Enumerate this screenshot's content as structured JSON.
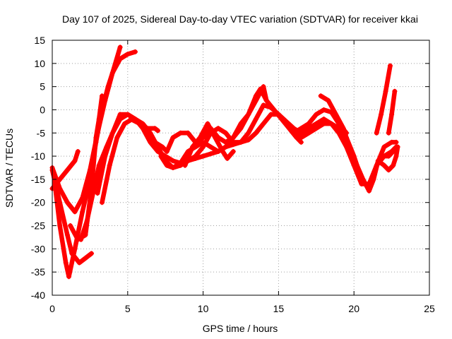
{
  "chart_data": {
    "type": "line",
    "title": "Day 107 of 2025, Sidereal Day-to-day VTEC variation (SDTVAR) for receiver kkai",
    "xlabel": "GPS time / hours",
    "ylabel": "SDTVAR / TECUs",
    "xlim": [
      0,
      25
    ],
    "ylim": [
      -40,
      15
    ],
    "xticks": [
      "0",
      "5",
      "10",
      "15",
      "20",
      "25"
    ],
    "yticks": [
      "15",
      "10",
      "5",
      "0",
      "-5",
      "-10",
      "-15",
      "-20",
      "-25",
      "-30",
      "-35",
      "-40"
    ],
    "grid": true,
    "series_color": "#ff0000",
    "marker": "plus",
    "series": [
      {
        "points": [
          [
            0,
            -12.5
          ],
          [
            0.5,
            -17
          ],
          [
            1.0,
            -20
          ],
          [
            1.5,
            -22
          ],
          [
            2.0,
            -19
          ],
          [
            2.5,
            -13
          ],
          [
            3.0,
            -5
          ],
          [
            3.5,
            2
          ],
          [
            4.0,
            8
          ],
          [
            4.5,
            13.5
          ]
        ]
      },
      {
        "points": [
          [
            0,
            -13
          ],
          [
            0.5,
            -20
          ],
          [
            1.0,
            -27
          ],
          [
            1.3,
            -31
          ],
          [
            1.8,
            -33
          ],
          [
            2.2,
            -32
          ],
          [
            2.6,
            -31
          ]
        ]
      },
      {
        "points": [
          [
            0.1,
            -14
          ],
          [
            0.5,
            -25
          ],
          [
            0.9,
            -33
          ],
          [
            1.1,
            -36
          ],
          [
            1.5,
            -30
          ],
          [
            2.0,
            -22
          ],
          [
            2.5,
            -15
          ],
          [
            2.9,
            -7
          ],
          [
            3.3,
            0
          ],
          [
            3.7,
            5
          ],
          [
            4.0,
            8
          ],
          [
            4.5,
            11
          ],
          [
            5.0,
            12
          ],
          [
            5.5,
            12.5
          ]
        ]
      },
      {
        "points": [
          [
            0,
            -17
          ],
          [
            0.5,
            -15
          ],
          [
            1.0,
            -13
          ],
          [
            1.5,
            -11
          ],
          [
            1.7,
            -9
          ]
        ]
      },
      {
        "points": [
          [
            1.2,
            -25
          ],
          [
            1.7,
            -28
          ],
          [
            2.2,
            -27
          ],
          [
            2.6,
            -17
          ],
          [
            2.9,
            -6
          ],
          [
            3.1,
            -2
          ],
          [
            3.3,
            3
          ]
        ]
      },
      {
        "points": [
          [
            1.9,
            -28
          ],
          [
            2.3,
            -24
          ],
          [
            2.7,
            -18
          ],
          [
            3.1,
            -12
          ],
          [
            3.6,
            -8
          ],
          [
            4.0,
            -5
          ],
          [
            4.5,
            -2
          ],
          [
            5.0,
            -1
          ],
          [
            5.5,
            -2
          ],
          [
            6.0,
            -3
          ],
          [
            6.5,
            -5
          ],
          [
            7.0,
            -8
          ],
          [
            7.5,
            -11
          ],
          [
            8.0,
            -12.5
          ],
          [
            8.5,
            -12
          ],
          [
            9.0,
            -11
          ],
          [
            9.5,
            -10.5
          ],
          [
            10.0,
            -10
          ],
          [
            10.5,
            -9.5
          ],
          [
            11.0,
            -9
          ],
          [
            11.5,
            -8
          ],
          [
            12.0,
            -7.5
          ],
          [
            12.5,
            -7
          ],
          [
            13.0,
            -6.5
          ],
          [
            13.5,
            -5
          ],
          [
            14.0,
            -3
          ],
          [
            14.5,
            -1
          ],
          [
            15.0,
            -1
          ],
          [
            15.5,
            -3
          ],
          [
            16.0,
            -5
          ],
          [
            16.5,
            -6
          ],
          [
            17.0,
            -5
          ],
          [
            17.5,
            -4
          ],
          [
            18.0,
            -3
          ],
          [
            18.5,
            -3
          ],
          [
            19.0,
            -4
          ],
          [
            19.5,
            -6
          ],
          [
            20.0,
            -10
          ],
          [
            20.5,
            -15
          ],
          [
            21.0,
            -17
          ],
          [
            21.5,
            -12
          ],
          [
            22.0,
            -8
          ],
          [
            22.5,
            -7
          ],
          [
            22.8,
            -7
          ]
        ]
      },
      {
        "points": [
          [
            3.0,
            -18
          ],
          [
            3.5,
            -10
          ],
          [
            4.0,
            -5
          ],
          [
            4.5,
            -1
          ],
          [
            5.0,
            -1
          ],
          [
            5.5,
            -2
          ],
          [
            6.0,
            -4
          ],
          [
            6.5,
            -7
          ],
          [
            7.0,
            -9
          ],
          [
            7.5,
            -10
          ],
          [
            8.0,
            -11
          ],
          [
            8.5,
            -11.5
          ],
          [
            9.0,
            -11
          ],
          [
            9.5,
            -10
          ],
          [
            10.0,
            -8
          ],
          [
            10.5,
            -5
          ],
          [
            11.0,
            -4
          ],
          [
            11.5,
            -5
          ],
          [
            12.0,
            -7
          ],
          [
            12.5,
            -7
          ],
          [
            13.0,
            -5
          ],
          [
            13.5,
            -2
          ],
          [
            14.0,
            1
          ],
          [
            14.5,
            0.5
          ],
          [
            15.0,
            -1
          ],
          [
            15.5,
            -2.5
          ],
          [
            16.0,
            -4
          ],
          [
            16.5,
            -5
          ],
          [
            17.0,
            -4
          ],
          [
            17.5,
            -3
          ],
          [
            18.0,
            -2
          ],
          [
            18.5,
            -3
          ],
          [
            19.0,
            -5
          ],
          [
            19.5,
            -8
          ],
          [
            20.0,
            -12
          ],
          [
            20.5,
            -16
          ],
          [
            21.0,
            -16
          ],
          [
            21.5,
            -12
          ],
          [
            22.0,
            -10
          ],
          [
            22.5,
            -9
          ],
          [
            22.8,
            -8
          ]
        ]
      },
      {
        "points": [
          [
            3.3,
            -20
          ],
          [
            3.8,
            -12
          ],
          [
            4.3,
            -6
          ],
          [
            4.8,
            -3
          ],
          [
            5.3,
            -2
          ],
          [
            5.8,
            -3
          ],
          [
            6.3,
            -5
          ],
          [
            6.8,
            -7
          ],
          [
            7.3,
            -8
          ],
          [
            7.6,
            -9
          ],
          [
            8.0,
            -6
          ],
          [
            8.5,
            -5
          ],
          [
            9.0,
            -5
          ],
          [
            9.5,
            -7
          ],
          [
            10.0,
            -6
          ],
          [
            10.5,
            -4
          ],
          [
            11.0,
            -6
          ],
          [
            11.5,
            -7
          ],
          [
            12.0,
            -6
          ],
          [
            12.5,
            -4
          ],
          [
            13.0,
            -1
          ],
          [
            13.5,
            3
          ],
          [
            13.8,
            4.5
          ],
          [
            14.2,
            2
          ],
          [
            14.7,
            0
          ],
          [
            15.2,
            -2
          ],
          [
            15.7,
            -4
          ],
          [
            16.2,
            -6
          ],
          [
            16.5,
            -7
          ]
        ]
      },
      {
        "points": [
          [
            5.2,
            -2
          ],
          [
            5.8,
            -3
          ],
          [
            6.3,
            -4
          ],
          [
            6.8,
            -4
          ],
          [
            7.0,
            -4.5
          ]
        ]
      },
      {
        "points": [
          [
            7.2,
            -10
          ],
          [
            7.6,
            -12
          ],
          [
            8.0,
            -12.5
          ],
          [
            8.5,
            -11.5
          ],
          [
            9.0,
            -9
          ],
          [
            9.5,
            -8
          ],
          [
            10.0,
            -7
          ],
          [
            10.5,
            -8
          ],
          [
            11.0,
            -9
          ],
          [
            11.5,
            -8
          ],
          [
            12.0,
            -6
          ],
          [
            12.5,
            -3
          ],
          [
            13.0,
            -1
          ],
          [
            13.5,
            2
          ],
          [
            14.0,
            5
          ],
          [
            14.2,
            2
          ]
        ]
      },
      {
        "points": [
          [
            8.8,
            -12
          ],
          [
            9.3,
            -8
          ],
          [
            9.8,
            -6
          ],
          [
            10.3,
            -3
          ],
          [
            10.8,
            -6
          ],
          [
            11.3,
            -9
          ],
          [
            11.6,
            -10.5
          ],
          [
            12.0,
            -9
          ]
        ]
      },
      {
        "points": [
          [
            16.0,
            -5
          ],
          [
            16.5,
            -4
          ],
          [
            17.0,
            -3
          ],
          [
            17.5,
            -1
          ],
          [
            18.0,
            0
          ],
          [
            18.5,
            -0.5
          ],
          [
            19.0,
            -3
          ],
          [
            19.5,
            -5
          ]
        ]
      },
      {
        "points": [
          [
            17.8,
            3
          ],
          [
            18.3,
            2
          ],
          [
            18.8,
            -1
          ],
          [
            19.3,
            -4
          ],
          [
            19.7,
            -8
          ],
          [
            20.2,
            -12
          ],
          [
            20.6,
            -15
          ],
          [
            21.0,
            -17.5
          ],
          [
            21.3,
            -15
          ],
          [
            21.6,
            -11
          ],
          [
            22.0,
            -10
          ],
          [
            22.3,
            -10
          ],
          [
            22.6,
            -9
          ]
        ]
      },
      {
        "points": [
          [
            21.5,
            -5
          ],
          [
            21.8,
            -1
          ],
          [
            22.1,
            4
          ],
          [
            22.4,
            9.5
          ]
        ]
      },
      {
        "points": [
          [
            21.6,
            -11
          ],
          [
            22.0,
            -12
          ],
          [
            22.3,
            -13
          ],
          [
            22.6,
            -12
          ],
          [
            22.8,
            -10
          ],
          [
            22.9,
            -8
          ]
        ]
      },
      {
        "points": [
          [
            22.3,
            -5
          ],
          [
            22.5,
            -1
          ],
          [
            22.7,
            4
          ]
        ]
      }
    ]
  }
}
